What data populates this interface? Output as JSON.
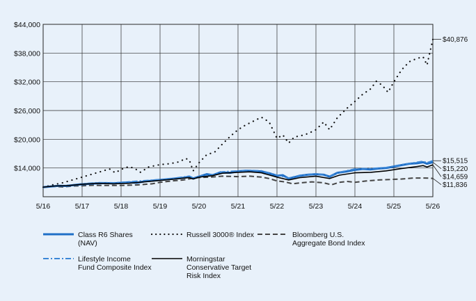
{
  "chart_data": {
    "type": "line",
    "title": "",
    "xlabel": "",
    "ylabel": "",
    "ylim": [
      8000,
      44000
    ],
    "y_ticks": [
      {
        "value": 14000,
        "label": "$14,000"
      },
      {
        "value": 20000,
        "label": "$20,000"
      },
      {
        "value": 26000,
        "label": "$26,000"
      },
      {
        "value": 32000,
        "label": "$32,000"
      },
      {
        "value": 38000,
        "label": "$38,000"
      },
      {
        "value": 44000,
        "label": "$44,000"
      }
    ],
    "x_ticks": [
      "5/16",
      "5/17",
      "5/18",
      "5/19",
      "5/20",
      "5/21",
      "5/22",
      "5/23",
      "5/24",
      "5/25",
      "5/26"
    ],
    "grid": "vertical and horizontal",
    "legend_position": "bottom",
    "series": [
      {
        "name": "Class R6 Shares (NAV)",
        "legend_lines": [
          "Class R6 Shares",
          "(NAV)"
        ],
        "color": "#1f6fc7",
        "style": "solid-thick",
        "end_label": "$15,220",
        "end_value": 15220,
        "points": [
          [
            0,
            10000
          ],
          [
            0.2,
            10150
          ],
          [
            0.4,
            10300
          ],
          [
            0.6,
            10250
          ],
          [
            0.8,
            10450
          ],
          [
            1,
            10600
          ],
          [
            1.2,
            10700
          ],
          [
            1.4,
            10800
          ],
          [
            1.6,
            10850
          ],
          [
            1.8,
            10800
          ],
          [
            2,
            10900
          ],
          [
            2.2,
            11000
          ],
          [
            2.4,
            10900
          ],
          [
            2.6,
            11200
          ],
          [
            2.8,
            11350
          ],
          [
            3,
            11500
          ],
          [
            3.2,
            11650
          ],
          [
            3.4,
            11800
          ],
          [
            3.6,
            11950
          ],
          [
            3.75,
            12200
          ],
          [
            3.85,
            11800
          ],
          [
            4,
            12200
          ],
          [
            4.2,
            12700
          ],
          [
            4.35,
            12500
          ],
          [
            4.55,
            13100
          ],
          [
            4.8,
            13000
          ],
          [
            5,
            13300
          ],
          [
            5.2,
            13450
          ],
          [
            5.4,
            13350
          ],
          [
            5.6,
            13300
          ],
          [
            5.8,
            12900
          ],
          [
            6,
            12400
          ],
          [
            6.15,
            12500
          ],
          [
            6.3,
            11800
          ],
          [
            6.45,
            12100
          ],
          [
            6.6,
            12400
          ],
          [
            6.8,
            12600
          ],
          [
            7,
            12700
          ],
          [
            7.2,
            12600
          ],
          [
            7.35,
            12200
          ],
          [
            7.55,
            13000
          ],
          [
            7.8,
            13300
          ],
          [
            8,
            13600
          ],
          [
            8.2,
            13800
          ],
          [
            8.4,
            13700
          ],
          [
            8.6,
            13900
          ],
          [
            8.8,
            14000
          ],
          [
            9,
            14300
          ],
          [
            9.2,
            14600
          ],
          [
            9.4,
            14900
          ],
          [
            9.6,
            15000
          ],
          [
            9.75,
            15200
          ],
          [
            9.85,
            14900
          ],
          [
            10,
            15220
          ]
        ]
      },
      {
        "name": "Russell 3000® Index",
        "legend_lines": [
          "Russell 3000® Index"
        ],
        "color": "#111111",
        "style": "dotted",
        "end_label": "$40,876",
        "end_value": 40876,
        "points": [
          [
            0,
            10000
          ],
          [
            0.25,
            10500
          ],
          [
            0.5,
            10900
          ],
          [
            0.75,
            11500
          ],
          [
            1,
            12100
          ],
          [
            1.25,
            12700
          ],
          [
            1.5,
            13300
          ],
          [
            1.7,
            13800
          ],
          [
            1.85,
            13000
          ],
          [
            2,
            13700
          ],
          [
            2.2,
            14300
          ],
          [
            2.35,
            13900
          ],
          [
            2.5,
            13100
          ],
          [
            2.7,
            14200
          ],
          [
            3,
            14700
          ],
          [
            3.25,
            14900
          ],
          [
            3.5,
            15300
          ],
          [
            3.65,
            16000
          ],
          [
            3.75,
            15700
          ],
          [
            3.85,
            13400
          ],
          [
            4,
            15100
          ],
          [
            4.2,
            16800
          ],
          [
            4.4,
            17300
          ],
          [
            4.6,
            19000
          ],
          [
            4.8,
            20600
          ],
          [
            5,
            22000
          ],
          [
            5.2,
            23000
          ],
          [
            5.4,
            23800
          ],
          [
            5.6,
            24600
          ],
          [
            5.8,
            23600
          ],
          [
            6,
            20200
          ],
          [
            6.15,
            20900
          ],
          [
            6.3,
            19200
          ],
          [
            6.45,
            20500
          ],
          [
            6.6,
            20700
          ],
          [
            6.8,
            21200
          ],
          [
            7,
            22000
          ],
          [
            7.2,
            23600
          ],
          [
            7.35,
            22000
          ],
          [
            7.55,
            24500
          ],
          [
            7.8,
            26500
          ],
          [
            8,
            27900
          ],
          [
            8.2,
            29400
          ],
          [
            8.4,
            30500
          ],
          [
            8.55,
            32100
          ],
          [
            8.7,
            31300
          ],
          [
            8.85,
            29800
          ],
          [
            9,
            32000
          ],
          [
            9.2,
            34500
          ],
          [
            9.4,
            36200
          ],
          [
            9.6,
            36900
          ],
          [
            9.75,
            37200
          ],
          [
            9.85,
            35500
          ],
          [
            10,
            40876
          ]
        ]
      },
      {
        "name": "Bloomberg U.S. Aggregate Bond Index",
        "legend_lines": [
          "Bloomberg U.S.",
          "Aggregate Bond Index"
        ],
        "color": "#444444",
        "style": "dashed",
        "end_label": "$11,836",
        "end_value": 11836,
        "points": [
          [
            0,
            10000
          ],
          [
            0.3,
            10150
          ],
          [
            0.5,
            10050
          ],
          [
            0.8,
            10250
          ],
          [
            1,
            10300
          ],
          [
            1.3,
            10400
          ],
          [
            1.6,
            10350
          ],
          [
            2,
            10350
          ],
          [
            2.4,
            10450
          ],
          [
            2.8,
            10700
          ],
          [
            3,
            11000
          ],
          [
            3.3,
            11300
          ],
          [
            3.6,
            11500
          ],
          [
            3.8,
            11800
          ],
          [
            4,
            12000
          ],
          [
            4.3,
            12100
          ],
          [
            4.6,
            12300
          ],
          [
            5,
            12200
          ],
          [
            5.3,
            12300
          ],
          [
            5.6,
            12100
          ],
          [
            5.8,
            11800
          ],
          [
            6,
            11300
          ],
          [
            6.2,
            11100
          ],
          [
            6.4,
            10700
          ],
          [
            6.6,
            10900
          ],
          [
            6.9,
            11100
          ],
          [
            7.2,
            10900
          ],
          [
            7.4,
            10500
          ],
          [
            7.6,
            11000
          ],
          [
            7.8,
            11200
          ],
          [
            8,
            11000
          ],
          [
            8.3,
            11300
          ],
          [
            8.6,
            11500
          ],
          [
            8.9,
            11600
          ],
          [
            9.2,
            11700
          ],
          [
            9.5,
            11900
          ],
          [
            9.8,
            11900
          ],
          [
            10,
            11836
          ]
        ]
      },
      {
        "name": "Lifestyle Income Fund Composite Index",
        "legend_lines": [
          "Lifestyle Income",
          "Fund Composite Index"
        ],
        "color": "#3a86d6",
        "style": "dash-dot",
        "end_label": "$15,515",
        "end_value": 15515,
        "points": [
          [
            0,
            10000
          ],
          [
            0.3,
            10250
          ],
          [
            0.6,
            10350
          ],
          [
            1,
            10700
          ],
          [
            1.4,
            10950
          ],
          [
            1.8,
            10900
          ],
          [
            2.2,
            11100
          ],
          [
            2.6,
            11350
          ],
          [
            3,
            11600
          ],
          [
            3.4,
            11900
          ],
          [
            3.75,
            12300
          ],
          [
            3.85,
            11900
          ],
          [
            4,
            12300
          ],
          [
            4.35,
            12600
          ],
          [
            4.6,
            13200
          ],
          [
            5,
            13400
          ],
          [
            5.3,
            13500
          ],
          [
            5.6,
            13400
          ],
          [
            6,
            12500
          ],
          [
            6.3,
            11900
          ],
          [
            6.6,
            12500
          ],
          [
            7,
            12800
          ],
          [
            7.35,
            12300
          ],
          [
            7.6,
            13100
          ],
          [
            8,
            13800
          ],
          [
            8.4,
            13900
          ],
          [
            8.8,
            14100
          ],
          [
            9.2,
            14700
          ],
          [
            9.6,
            15200
          ],
          [
            9.75,
            15400
          ],
          [
            9.85,
            15100
          ],
          [
            10,
            15515
          ]
        ]
      },
      {
        "name": "Morningstar Conservative Target Risk Index",
        "legend_lines": [
          "Morningstar",
          "Conservative Target",
          "Risk Index"
        ],
        "color": "#000000",
        "style": "solid",
        "end_label": "$14,659",
        "end_value": 14659,
        "points": [
          [
            0,
            10000
          ],
          [
            0.3,
            10250
          ],
          [
            0.6,
            10300
          ],
          [
            1,
            10600
          ],
          [
            1.4,
            10800
          ],
          [
            1.8,
            10700
          ],
          [
            2.2,
            10800
          ],
          [
            2.6,
            11100
          ],
          [
            3,
            11400
          ],
          [
            3.4,
            11700
          ],
          [
            3.75,
            12000
          ],
          [
            3.85,
            11700
          ],
          [
            4,
            12100
          ],
          [
            4.35,
            12400
          ],
          [
            4.6,
            12900
          ],
          [
            5,
            13100
          ],
          [
            5.3,
            13200
          ],
          [
            5.6,
            13000
          ],
          [
            6,
            12100
          ],
          [
            6.3,
            11500
          ],
          [
            6.6,
            12000
          ],
          [
            7,
            12300
          ],
          [
            7.35,
            11800
          ],
          [
            7.6,
            12500
          ],
          [
            8,
            13000
          ],
          [
            8.4,
            13100
          ],
          [
            8.8,
            13400
          ],
          [
            9.2,
            13900
          ],
          [
            9.6,
            14300
          ],
          [
            9.75,
            14500
          ],
          [
            9.85,
            14200
          ],
          [
            10,
            14659
          ]
        ]
      }
    ]
  }
}
